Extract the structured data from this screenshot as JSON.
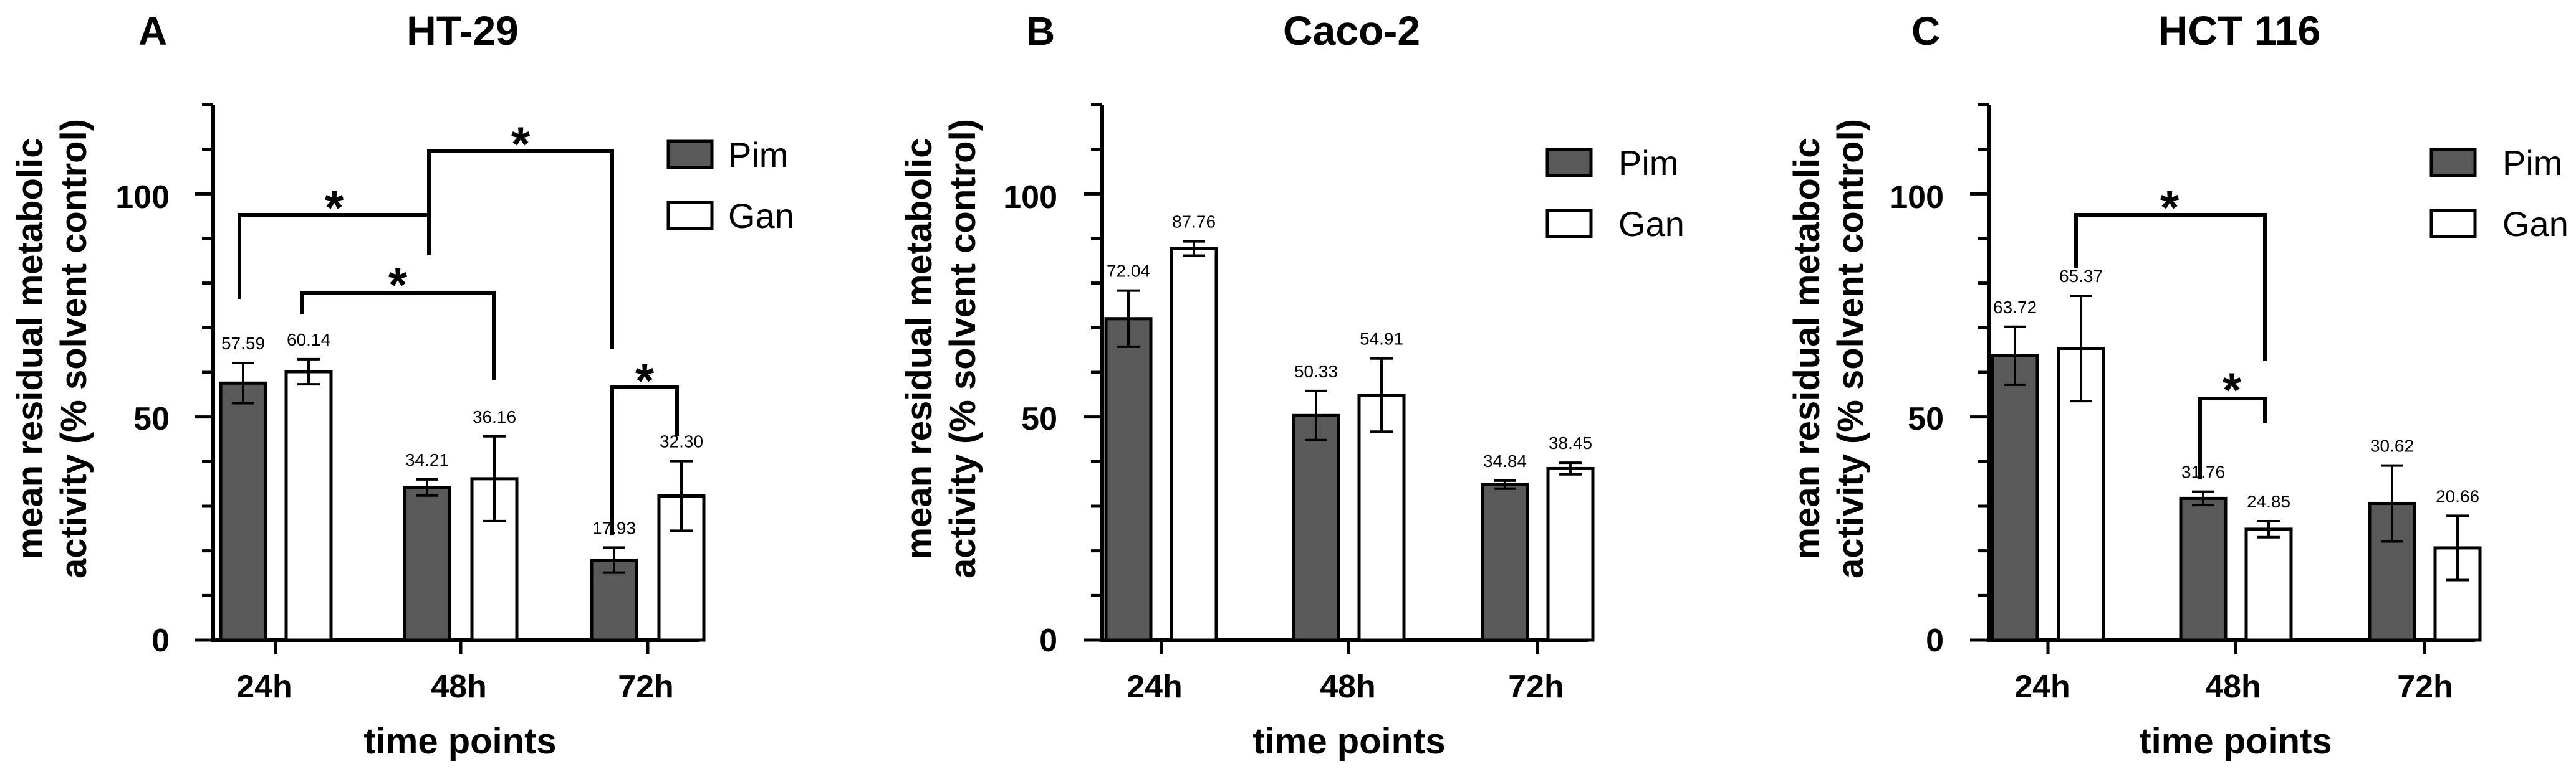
{
  "chart_data": [
    {
      "type": "bar",
      "panel_letter": "A",
      "title": "HT-29",
      "xlabel": "time points",
      "ylabel": [
        "mean residual metabolic",
        "activity (% solvent control)"
      ],
      "ylim": [
        0,
        120
      ],
      "yticks": [
        0,
        50,
        100
      ],
      "categories": [
        "24h",
        "48h",
        "72h"
      ],
      "series": [
        {
          "name": "Pim",
          "color": "#595959",
          "values": [
            57.59,
            34.21,
            17.93
          ],
          "errors": [
            4.5,
            1.8,
            2.8
          ],
          "labels": [
            "57.59",
            "34.21",
            "17.93"
          ]
        },
        {
          "name": "Gan",
          "color": "#ffffff",
          "values": [
            60.14,
            36.16,
            32.3
          ],
          "errors": [
            2.8,
            9.5,
            7.8
          ],
          "labels": [
            "60.14",
            "36.16",
            "32.30"
          ]
        }
      ],
      "significance": [
        {
          "from": [
            0,
            0
          ],
          "to": [
            1,
            0
          ],
          "label": "*"
        },
        {
          "from": [
            0,
            1
          ],
          "to": [
            1,
            1
          ],
          "label": "*"
        },
        {
          "from": [
            1,
            0
          ],
          "to": [
            2,
            0
          ],
          "label": "*"
        },
        {
          "from": [
            2,
            0
          ],
          "to": [
            2,
            1
          ],
          "label": "*"
        }
      ]
    },
    {
      "type": "bar",
      "panel_letter": "B",
      "title": "Caco-2",
      "xlabel": "time points",
      "ylabel": [
        "mean residual metabolic",
        "activity (% solvent control)"
      ],
      "ylim": [
        0,
        120
      ],
      "yticks": [
        0,
        50,
        100
      ],
      "categories": [
        "24h",
        "48h",
        "72h"
      ],
      "series": [
        {
          "name": "Pim",
          "color": "#595959",
          "values": [
            72.04,
            50.33,
            34.84
          ],
          "errors": [
            6.3,
            5.5,
            0.9
          ],
          "labels": [
            "72.04",
            "50.33",
            "34.84"
          ]
        },
        {
          "name": "Gan",
          "color": "#ffffff",
          "values": [
            87.76,
            54.91,
            38.45
          ],
          "errors": [
            1.6,
            8.2,
            1.3
          ],
          "labels": [
            "87.76",
            "54.91",
            "38.45"
          ]
        }
      ],
      "significance": []
    },
    {
      "type": "bar",
      "panel_letter": "C",
      "title": "HCT 116",
      "xlabel": "time points",
      "ylabel": [
        "mean residual metabolic",
        "activity (% solvent control)"
      ],
      "ylim": [
        0,
        120
      ],
      "yticks": [
        0,
        50,
        100
      ],
      "categories": [
        "24h",
        "48h",
        "72h"
      ],
      "series": [
        {
          "name": "Pim",
          "color": "#595959",
          "values": [
            63.72,
            31.76,
            30.62
          ],
          "errors": [
            6.5,
            1.5,
            8.5
          ],
          "labels": [
            "63.72",
            "31.76",
            "30.62"
          ]
        },
        {
          "name": "Gan",
          "color": "#ffffff",
          "values": [
            65.37,
            24.85,
            20.66
          ],
          "errors": [
            11.8,
            1.8,
            7.2
          ],
          "labels": [
            "65.37",
            "24.85",
            "20.66"
          ]
        }
      ],
      "significance": [
        {
          "from": [
            0,
            1
          ],
          "to": [
            1,
            1
          ],
          "label": "*"
        },
        {
          "from": [
            1,
            0
          ],
          "to": [
            1,
            1
          ],
          "label": "*"
        }
      ]
    }
  ]
}
